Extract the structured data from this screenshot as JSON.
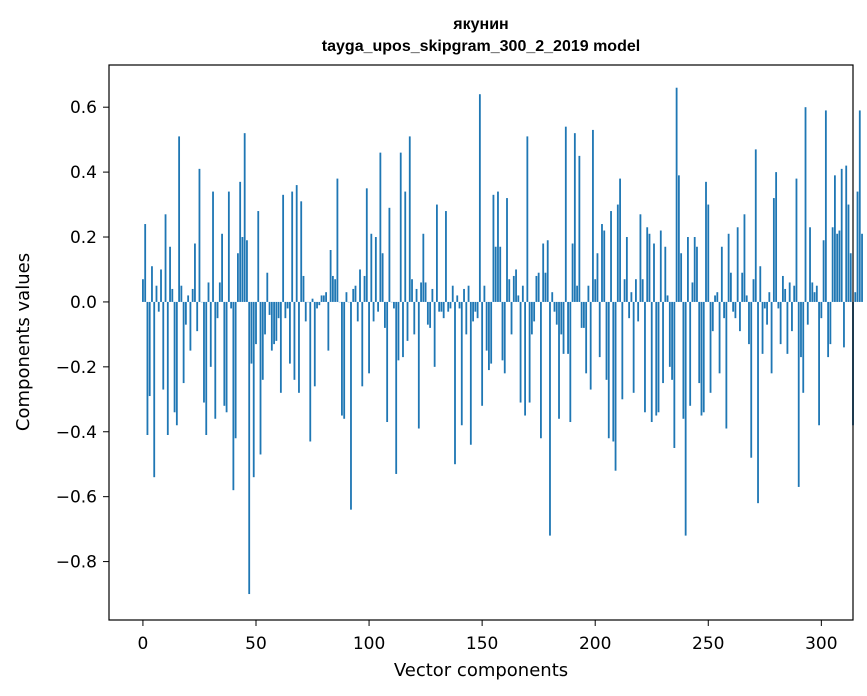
{
  "chart_data": {
    "type": "bar",
    "title": "якунин",
    "subtitle": "tayga_upos_skipgram_300_2_2019 model",
    "xlabel": "Vector components",
    "ylabel": "Components values",
    "xlim": [
      -15,
      314
    ],
    "ylim": [
      -0.98,
      0.73
    ],
    "xticks": [
      0,
      50,
      100,
      150,
      200,
      250,
      300
    ],
    "xtick_labels": [
      "0",
      "50",
      "100",
      "150",
      "200",
      "250",
      "300"
    ],
    "yticks": [
      -0.8,
      -0.6,
      -0.4,
      -0.2,
      0.0,
      0.2,
      0.4,
      0.6
    ],
    "ytick_labels": [
      "−0.8",
      "−0.6",
      "−0.4",
      "−0.2",
      "0.0",
      "0.2",
      "0.4",
      "0.6"
    ],
    "bar_color": "#1f77b4",
    "grid": false,
    "values": [
      0.07,
      0.24,
      -0.41,
      -0.29,
      0.11,
      -0.54,
      0.05,
      -0.03,
      0.1,
      -0.27,
      0.27,
      -0.41,
      0.17,
      0.04,
      -0.34,
      -0.38,
      0.51,
      0.05,
      -0.25,
      -0.07,
      0.02,
      -0.15,
      0.04,
      0.18,
      -0.09,
      0.41,
      0.0,
      -0.31,
      -0.41,
      0.06,
      -0.2,
      0.34,
      -0.36,
      -0.05,
      0.06,
      0.21,
      -0.32,
      -0.34,
      0.34,
      -0.02,
      -0.58,
      -0.42,
      0.15,
      0.37,
      0.2,
      0.52,
      0.19,
      -0.9,
      -0.19,
      -0.54,
      -0.13,
      0.28,
      -0.47,
      -0.24,
      -0.1,
      0.09,
      -0.04,
      -0.15,
      -0.13,
      -0.12,
      -0.05,
      -0.28,
      0.33,
      -0.05,
      -0.02,
      -0.19,
      0.34,
      -0.24,
      0.36,
      -0.28,
      0.31,
      0.08,
      -0.06,
      0.0,
      -0.43,
      0.01,
      -0.26,
      -0.02,
      -0.01,
      0.02,
      0.02,
      0.03,
      -0.15,
      0.16,
      0.08,
      0.07,
      0.38,
      0.0,
      -0.35,
      -0.36,
      0.03,
      0.0,
      -0.64,
      0.04,
      0.05,
      -0.06,
      0.1,
      -0.26,
      0.08,
      0.35,
      -0.22,
      0.21,
      -0.06,
      0.2,
      -0.03,
      0.46,
      0.15,
      -0.08,
      -0.37,
      0.29,
      0.0,
      -0.02,
      -0.53,
      -0.18,
      0.46,
      -0.17,
      0.34,
      -0.12,
      0.51,
      0.07,
      -0.1,
      0.04,
      -0.39,
      0.06,
      0.21,
      0.06,
      -0.07,
      -0.08,
      0.04,
      -0.2,
      0.3,
      -0.03,
      -0.03,
      -0.05,
      0.28,
      -0.03,
      -0.02,
      0.05,
      -0.5,
      0.02,
      -0.02,
      -0.38,
      0.04,
      -0.1,
      0.05,
      -0.44,
      -0.06,
      -0.03,
      -0.05,
      0.64,
      -0.32,
      0.05,
      -0.15,
      -0.21,
      -0.19,
      0.33,
      0.17,
      0.34,
      0.17,
      -0.18,
      -0.22,
      0.32,
      0.07,
      -0.1,
      0.08,
      0.1,
      0.02,
      -0.31,
      0.05,
      -0.35,
      0.51,
      -0.31,
      -0.1,
      -0.06,
      0.08,
      0.09,
      -0.42,
      0.18,
      0.09,
      0.19,
      -0.72,
      0.03,
      -0.03,
      -0.07,
      -0.36,
      -0.1,
      -0.16,
      0.54,
      -0.16,
      -0.37,
      0.18,
      0.52,
      0.05,
      0.45,
      -0.08,
      -0.08,
      -0.22,
      0.05,
      -0.27,
      0.53,
      0.07,
      0.15,
      -0.17,
      0.24,
      0.22,
      -0.24,
      -0.42,
      0.28,
      -0.43,
      -0.52,
      0.3,
      0.38,
      -0.3,
      0.07,
      0.2,
      -0.05,
      0.03,
      -0.28,
      0.07,
      -0.06,
      0.27,
      0.07,
      -0.34,
      0.23,
      0.21,
      -0.37,
      0.18,
      -0.35,
      -0.34,
      0.22,
      -0.25,
      0.17,
      0.02,
      -0.2,
      -0.24,
      -0.45,
      0.66,
      0.39,
      0.15,
      -0.36,
      -0.72,
      0.2,
      -0.32,
      0.06,
      0.2,
      0.17,
      -0.25,
      -0.35,
      -0.34,
      0.37,
      0.3,
      -0.28,
      -0.09,
      0.02,
      0.03,
      -0.22,
      0.17,
      -0.05,
      -0.39,
      0.21,
      0.09,
      -0.03,
      -0.05,
      0.23,
      -0.09,
      0.09,
      0.27,
      0.02,
      -0.13,
      -0.48,
      0.07,
      0.47,
      -0.62,
      0.11,
      -0.16,
      -0.02,
      -0.07,
      0.03,
      -0.22,
      0.32,
      0.4,
      -0.02,
      -0.13,
      0.08,
      0.04,
      -0.16,
      0.06,
      -0.09,
      0.05,
      0.38,
      -0.57,
      -0.17,
      -0.28,
      0.6,
      -0.07,
      0.23,
      0.06,
      0.03,
      0.05,
      -0.38,
      -0.05,
      0.19,
      0.59,
      -0.17,
      -0.13,
      0.23,
      0.39,
      0.21,
      0.22,
      0.41,
      -0.14,
      0.42,
      0.3,
      0.15,
      -0.38,
      0.03,
      0.34,
      0.59,
      0.21
    ]
  }
}
